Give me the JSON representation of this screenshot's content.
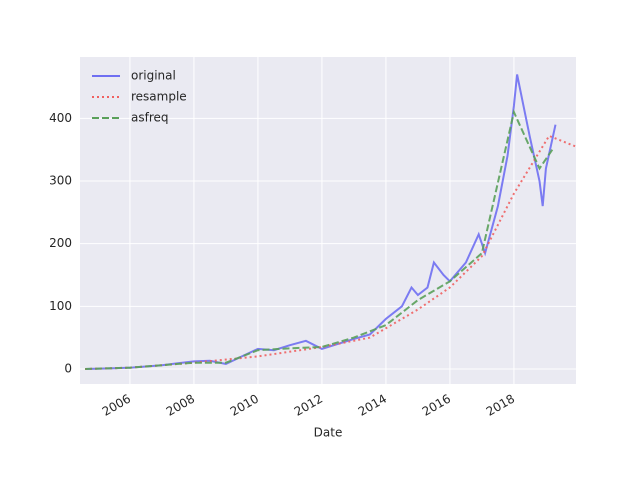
{
  "chart_data": {
    "type": "line",
    "x_label": "Date",
    "xlim": [
      2004.44,
      2019.94
    ],
    "xticks": [
      2006,
      2008,
      2010,
      2012,
      2014,
      2016,
      2018
    ],
    "ylim": [
      -24,
      498
    ],
    "yticks": [
      0,
      100,
      200,
      300,
      400
    ],
    "grid": true,
    "legend": "upper left",
    "series": [
      {
        "name": "original",
        "color": "#6f6ff2",
        "dash": "solid",
        "x": [
          2004.6,
          2005.5,
          2006,
          2006.5,
          2007,
          2007.5,
          2008,
          2008.5,
          2009,
          2009.5,
          2010,
          2010.5,
          2011,
          2011.5,
          2012,
          2012.5,
          2013,
          2013.5,
          2014,
          2014.5,
          2014.8,
          2015,
          2015.3,
          2015.5,
          2015.8,
          2016,
          2016.5,
          2016.9,
          2017.1,
          2017.5,
          2017.8,
          2018.0,
          2018.1,
          2018.3,
          2018.5,
          2018.8,
          2018.9,
          2019.0,
          2019.3
        ],
        "values": [
          0,
          1,
          2,
          4,
          6,
          9,
          12,
          13,
          8,
          20,
          32,
          30,
          38,
          45,
          32,
          40,
          48,
          55,
          80,
          100,
          130,
          118,
          130,
          170,
          150,
          140,
          170,
          215,
          185,
          260,
          340,
          420,
          470,
          420,
          370,
          300,
          260,
          320,
          390
        ]
      },
      {
        "name": "resample",
        "color": "#f06060",
        "dash": "dotted",
        "x": [
          2004.6,
          2006,
          2008,
          2010,
          2012,
          2013.5,
          2015,
          2016,
          2017,
          2018,
          2019.1,
          2019.94
        ],
        "values": [
          0,
          2,
          10,
          20,
          35,
          50,
          95,
          130,
          180,
          280,
          372,
          355
        ]
      },
      {
        "name": "asfreq",
        "color": "#5aa05a",
        "dash": "dashed",
        "x": [
          2004.6,
          2006,
          2008,
          2009,
          2010,
          2011,
          2012,
          2013,
          2014,
          2015,
          2016,
          2017,
          2018,
          2018.8,
          2019.2
        ],
        "values": [
          0,
          2,
          10,
          10,
          30,
          33,
          35,
          50,
          70,
          110,
          140,
          185,
          410,
          320,
          350
        ]
      }
    ]
  }
}
